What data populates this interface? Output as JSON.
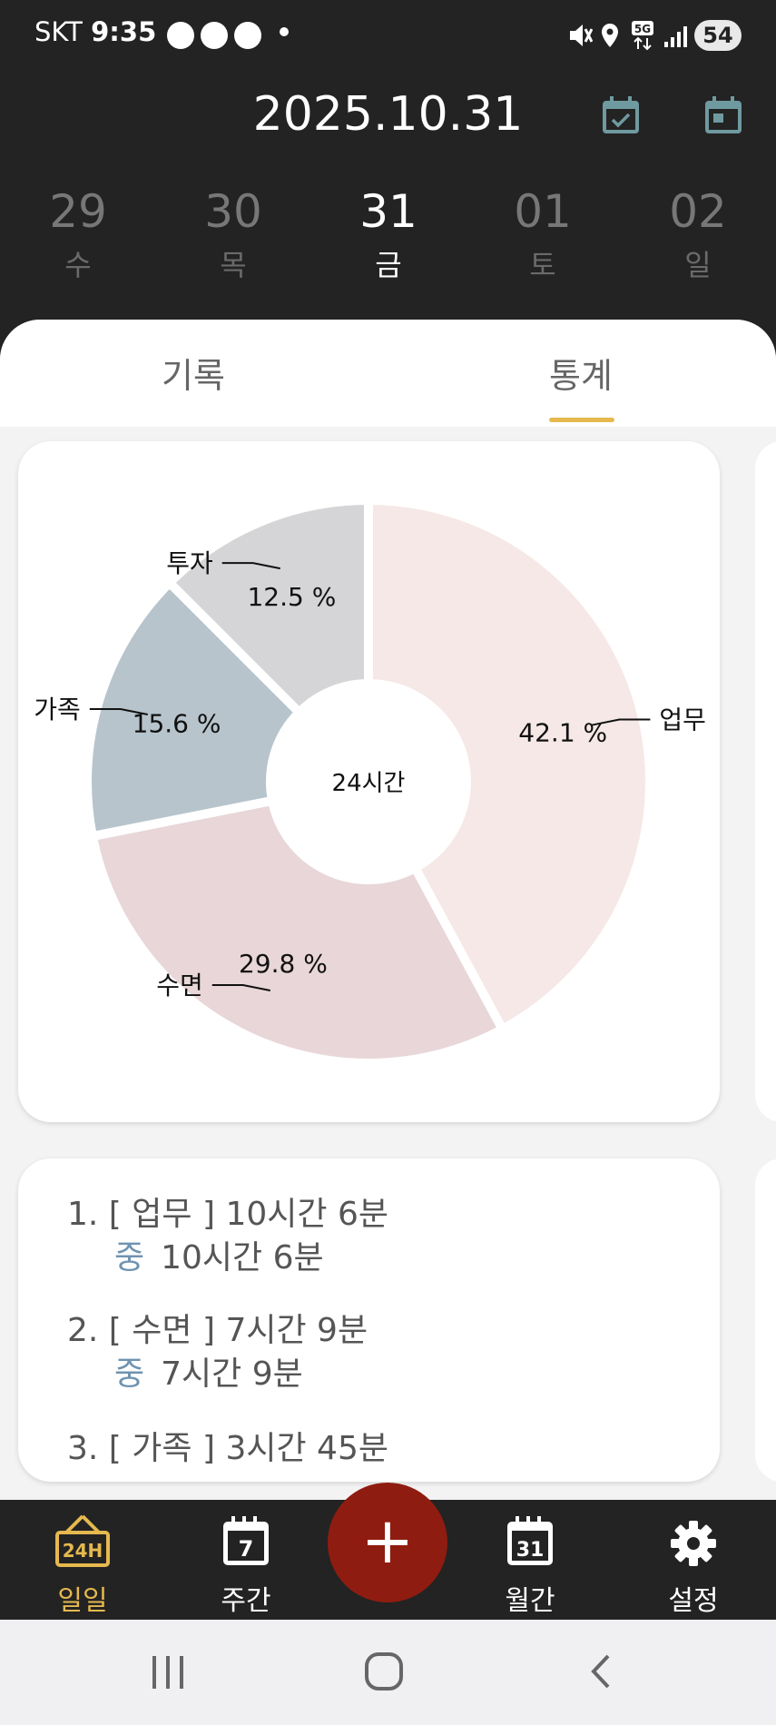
{
  "status_bar": {
    "carrier": "SKT",
    "time": "9:35",
    "battery": "54"
  },
  "header": {
    "date": "2025.10.31",
    "icons": [
      "calendar-check-icon",
      "calendar-icon"
    ],
    "days": [
      {
        "num": "29",
        "weekday": "수"
      },
      {
        "num": "30",
        "weekday": "목"
      },
      {
        "num": "31",
        "weekday": "금",
        "selected": true
      },
      {
        "num": "01",
        "weekday": "토"
      },
      {
        "num": "02",
        "weekday": "일"
      }
    ]
  },
  "tabs": [
    {
      "label": "기록"
    },
    {
      "label": "통계",
      "active": true
    }
  ],
  "chart_data": {
    "type": "pie",
    "center_label": "24시간",
    "slices": [
      {
        "name": "업무",
        "value": 42.1,
        "label": "42.1 %",
        "color": "#f5e8e6"
      },
      {
        "name": "수면",
        "value": 29.8,
        "label": "29.8 %",
        "color": "#e8d6d8"
      },
      {
        "name": "가족",
        "value": 15.6,
        "label": "15.6 %",
        "color": "#b7c4cc"
      },
      {
        "name": "투자",
        "value": 12.5,
        "label": "12.5 %",
        "color": "#d5d5d7"
      }
    ]
  },
  "ranking": [
    {
      "line": "1. [ 업무 ]  10시간 6분",
      "sub_key": "중",
      "sub_value": "10시간 6분"
    },
    {
      "line": "2. [ 수면 ]  7시간 9분",
      "sub_key": "중",
      "sub_value": "7시간 9분"
    },
    {
      "line": "3. [ 가족 ]  3시간 45분"
    }
  ],
  "bottom_nav": {
    "items": [
      {
        "label": "일일",
        "icon": "24h-sign-icon",
        "active": true
      },
      {
        "label": "주간",
        "icon": "calendar-7-icon",
        "badge": "7"
      },
      {
        "label": "월간",
        "icon": "calendar-31-icon",
        "badge": "31"
      },
      {
        "label": "설정",
        "icon": "gear-icon"
      }
    ],
    "fab_label": "+"
  },
  "colors": {
    "accent": "#e5b94e",
    "fab": "#8f1c10",
    "dark": "#232323"
  }
}
